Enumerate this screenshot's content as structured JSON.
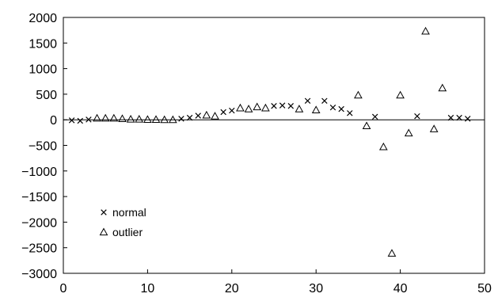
{
  "chart_data": {
    "type": "scatter",
    "title": "",
    "xlabel": "",
    "ylabel": "",
    "xlim": [
      0,
      50
    ],
    "ylim": [
      -3000,
      2000
    ],
    "x_ticks": [
      0,
      10,
      20,
      30,
      40,
      50
    ],
    "y_ticks": [
      2000,
      1500,
      1000,
      500,
      0,
      -500,
      -1000,
      -1500,
      -2000,
      -2500,
      -3000
    ],
    "x_tick_labels": [
      "0",
      "10",
      "20",
      "30",
      "40",
      "50"
    ],
    "y_tick_labels": [
      "2000",
      "1500",
      "1000",
      "500",
      "0",
      "−500",
      "−1000",
      "−1500",
      "−2000",
      "−2500",
      "−3000"
    ],
    "grid": false,
    "legend_position": "bottom-left",
    "series": [
      {
        "name": "normal",
        "marker": "x",
        "color": "#000000",
        "x": [
          1,
          2,
          3,
          14,
          15,
          16,
          19,
          20,
          25,
          26,
          27,
          29,
          31,
          32,
          33,
          34,
          37,
          42,
          46,
          47,
          48
        ],
        "y": [
          -10,
          -20,
          5,
          20,
          40,
          80,
          150,
          180,
          270,
          280,
          270,
          370,
          370,
          240,
          210,
          130,
          60,
          70,
          40,
          40,
          20
        ]
      },
      {
        "name": "outlier",
        "marker": "triangle",
        "color": "#000000",
        "x": [
          4,
          5,
          6,
          7,
          8,
          9,
          10,
          11,
          12,
          13,
          17,
          18,
          21,
          22,
          23,
          24,
          28,
          30,
          35,
          36,
          38,
          39,
          40,
          41,
          43,
          44,
          45
        ],
        "y": [
          30,
          30,
          30,
          20,
          10,
          10,
          5,
          5,
          0,
          0,
          90,
          70,
          230,
          210,
          250,
          230,
          210,
          190,
          480,
          -120,
          -530,
          -2610,
          480,
          -260,
          1730,
          -180,
          620
        ]
      }
    ]
  }
}
